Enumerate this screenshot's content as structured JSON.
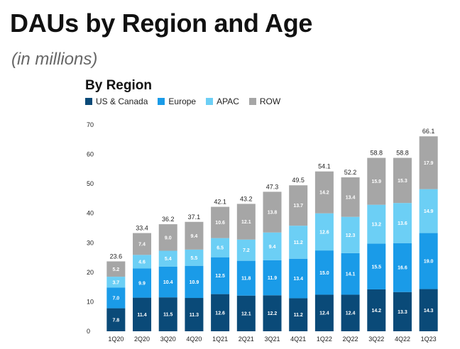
{
  "header": {
    "title": "DAUs by Region and Age",
    "subtitle": "(in millions)"
  },
  "chart_data": {
    "type": "bar",
    "stacked": true,
    "title": "By Region",
    "xlabel": "",
    "ylabel": "",
    "ylim": [
      0,
      70
    ],
    "yticks": [
      0,
      10,
      20,
      30,
      40,
      50,
      60,
      70
    ],
    "grid": false,
    "legend_position": "top-left",
    "categories": [
      "1Q20",
      "2Q20",
      "3Q20",
      "4Q20",
      "1Q21",
      "2Q21",
      "3Q21",
      "4Q21",
      "1Q22",
      "2Q22",
      "3Q22",
      "4Q22",
      "1Q23"
    ],
    "series": [
      {
        "name": "US & Canada",
        "color": "#0a4a78",
        "label_color": "#ffffff",
        "values": [
          7.8,
          11.4,
          11.5,
          11.3,
          12.6,
          12.1,
          12.2,
          11.2,
          12.4,
          12.4,
          14.2,
          13.3,
          14.3
        ]
      },
      {
        "name": "Europe",
        "color": "#1a9be8",
        "label_color": "#ffffff",
        "values": [
          7.0,
          9.9,
          10.4,
          10.9,
          12.5,
          11.8,
          11.9,
          13.4,
          15.0,
          14.1,
          15.5,
          16.6,
          19.0
        ]
      },
      {
        "name": "APAC",
        "color": "#6ccff5",
        "label_color": "#ffffff",
        "values": [
          3.7,
          4.6,
          5.4,
          5.5,
          6.5,
          7.2,
          9.4,
          11.2,
          12.6,
          12.3,
          13.2,
          13.6,
          14.9
        ]
      },
      {
        "name": "ROW",
        "color": "#a6a6a6",
        "label_color": "#ffffff",
        "values": [
          5.2,
          7.4,
          9.0,
          9.4,
          10.6,
          12.1,
          13.8,
          13.7,
          14.2,
          13.4,
          15.9,
          15.3,
          17.9
        ]
      }
    ],
    "totals": [
      "23.6",
      "33.4",
      "36.2",
      "37.1",
      "42.1",
      "43.2",
      "47.3",
      "49.5",
      "54.1",
      "52.2",
      "58.8",
      "58.8",
      "66.1"
    ]
  }
}
